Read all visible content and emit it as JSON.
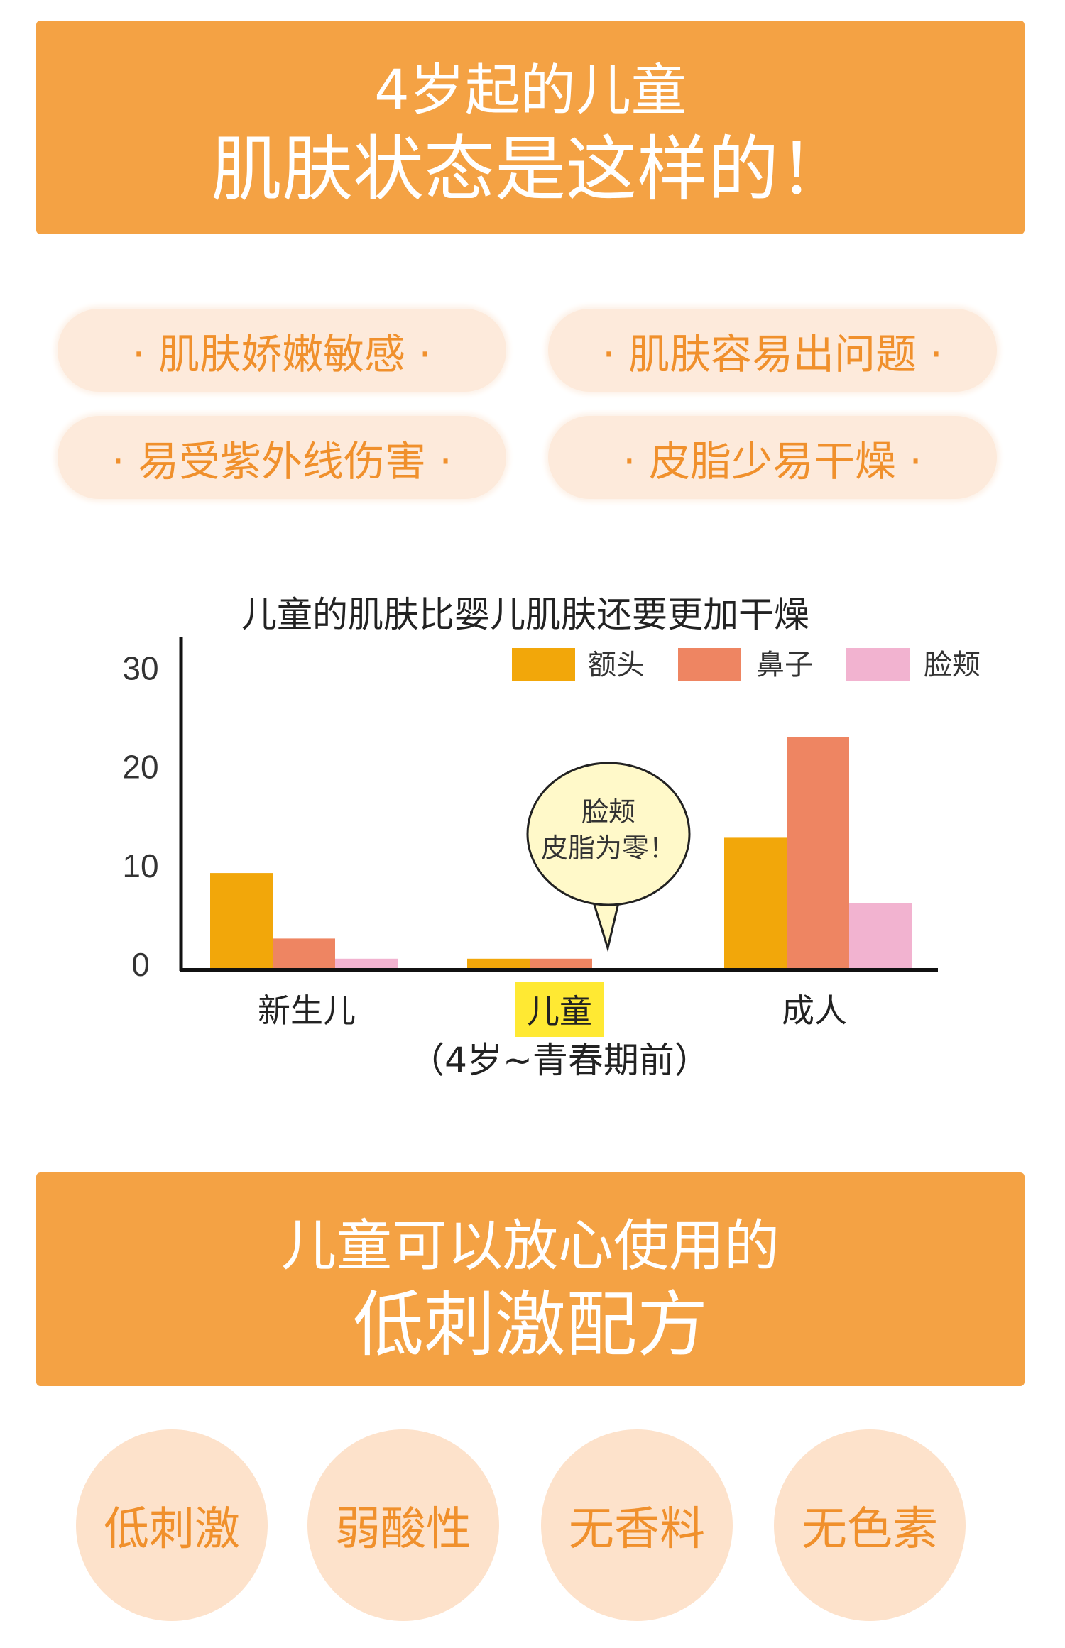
{
  "header1": {
    "line1": "4岁起的儿童",
    "line2": "肌肤状态是这样的！"
  },
  "features": [
    "· 肌肤娇嫩敏感 ·",
    "· 肌肤容易出问题 ·",
    "· 易受紫外线伤害 ·",
    "· 皮脂少易干燥 ·"
  ],
  "chart_data": {
    "type": "bar",
    "title": "儿童的肌肤比婴儿肌肤还要更加干燥",
    "categories": [
      "新生儿",
      "儿童",
      "成人"
    ],
    "category_note": "（4岁~青春期前）",
    "highlight_category": "儿童",
    "series": [
      {
        "name": "额头",
        "color": "#F2A70A",
        "values": [
          9.5,
          1,
          13
        ]
      },
      {
        "name": "鼻子",
        "color": "#EE8562",
        "values": [
          3,
          1,
          23
        ]
      },
      {
        "name": "脸颊",
        "color": "#F2B3D0",
        "values": [
          1,
          0,
          6.5
        ]
      }
    ],
    "yticks": [
      "0",
      "10",
      "20",
      "30"
    ],
    "ylim": [
      0,
      32
    ],
    "legend": "top-right",
    "grid": false,
    "annotation": {
      "line1": "脸颊",
      "line2": "皮脂为零！",
      "target": "儿童"
    }
  },
  "header2": {
    "line1": "儿童可以放心使用的",
    "line2": "低刺激配方"
  },
  "badges": [
    "低刺激",
    "弱酸性",
    "无香料",
    "无色素"
  ],
  "colors": {
    "banner": "#F4A244",
    "accent_text": "#F0902C",
    "pill_bg": "#FDEADB",
    "badge_bg": "#FDE2CB",
    "highlight": "#FFE933",
    "bubble": "#FFF9C9"
  }
}
